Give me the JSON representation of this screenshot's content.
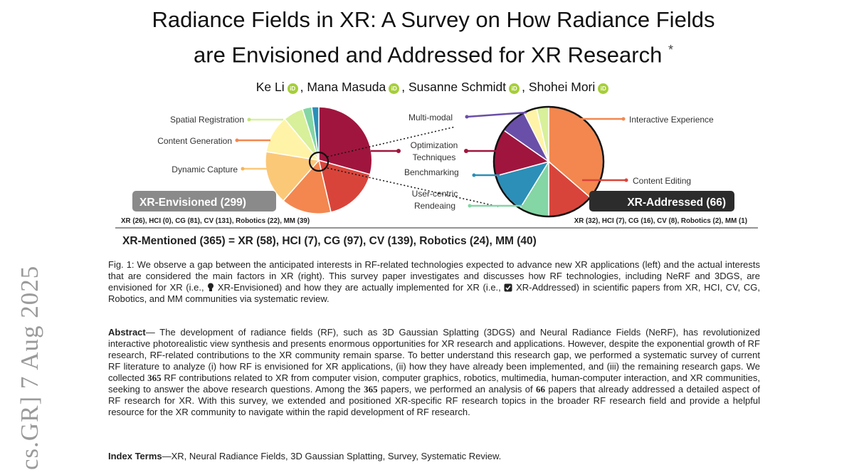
{
  "arxiv_stamp": "cs.GR]  7 Aug 2025",
  "title": {
    "line1": "Radiance Fields in XR: A Survey on How Radiance Fields",
    "line2": "are Envisioned and Addressed for XR Research",
    "mark": "*"
  },
  "authors": [
    "Ke Li",
    "Mana Masuda",
    "Susanne Schmidt",
    "Shohei Mori"
  ],
  "orcid_glyph": "iD",
  "figure": {
    "left_labels": [
      "Spatial Registration",
      "Content Generation",
      "Dynamic Capture"
    ],
    "center_labels": [
      "Multi-modal",
      "Optimization",
      "Techniques",
      "Benchmarking",
      "User-centric",
      "Rendeaing"
    ],
    "right_labels": [
      "Interactive Experience",
      "Content Editing"
    ],
    "left_banner": "XR-Envisioned (299)",
    "right_banner": "XR-Addressed (66)",
    "left_counts": "XR (26), HCI (0), CG (81), CV (131), Robotics (22), MM (39)",
    "right_counts": "XR (32), HCI (7), CG (16), CV (8), Robotics (2), MM (1)",
    "mentioned": "XR-Mentioned (365) = XR (58), HCI (7), CG (97), CV (139), Robotics (24), MM (40)",
    "colors": {
      "maroon": "#a0153e",
      "red": "#d9443a",
      "orange": "#f3874f",
      "light_orange": "#fbc878",
      "pale_yellow": "#fff3a8",
      "light_green": "#d8f09a",
      "mint": "#84d6a4",
      "teal": "#2b8fb8",
      "purple": "#6a4fa8",
      "banner_gray": "#8a8a8a",
      "banner_dark": "#2c2c2c"
    }
  },
  "caption": {
    "part1": "Fig. 1: We observe a gap between the anticipated interests in RF-related technologies expected to advance new XR applications (left) and the actual interests that are considered the main factors in XR (right). This survey paper investigates and discusses how RF technologies, including NeRF and 3DGS, are envisioned for XR (i.e., ",
    "envisioned": "XR-Envisioned",
    "part2": ") and how they are actually implemented for XR (i.e., ",
    "addressed": "XR-Addressed",
    "part3": ") in scientific papers from XR, HCI, CV, CG, Robotics, and MM communities via systematic review.",
    "lightbulb_icon": "lightbulb-icon",
    "checkbox_icon": "checkbox-icon"
  },
  "abstract": {
    "label": "Abstract",
    "part1": "— The development of radiance fields (RF), such as 3D Gaussian Splatting (3DGS) and Neural Radiance Fields (NeRF), has revolutionized interactive photorealistic view synthesis and presents enormous opportunities for XR research and applications. However, despite the exponential growth of RF research, RF-related contributions to the XR community remain sparse. To better understand this research gap, we performed a systematic survey of current RF literature to analyze (i) how RF is envisioned for XR applications, (ii) how they have already been implemented, and (iii) the remaining research gaps. We collected ",
    "n1": "365",
    "part2": " RF contributions related to XR from computer vision, computer graphics, robotics, multimedia, human-computer interaction, and XR communities, seeking to answer the above research questions. Among the ",
    "n2": "365",
    "part3": " papers, we performed an analysis of ",
    "n3": "66",
    "part4": " papers that already addressed a detailed aspect of RF research for XR. With this survey, we extended and positioned XR-specific RF research topics in the broader RF research field and provide a helpful resource for the XR community to navigate within the rapid development of RF research."
  },
  "index_terms": {
    "label": "Index Terms",
    "text": "—XR, Neural Radiance Fields, 3D Gaussian Splatting, Survey, Systematic Review."
  }
}
